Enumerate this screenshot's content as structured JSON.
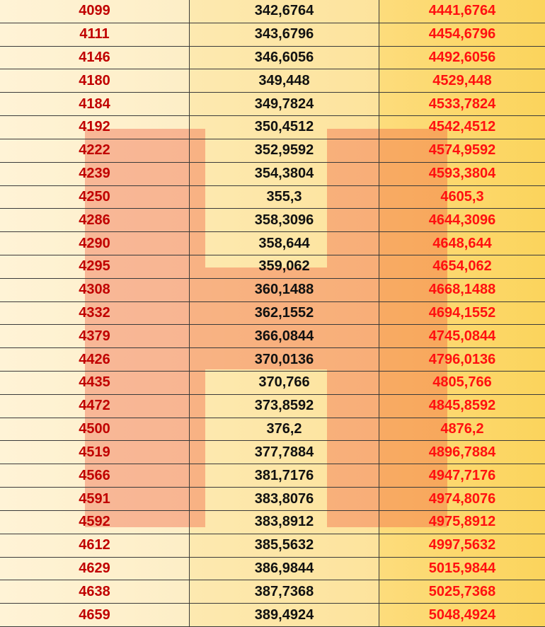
{
  "table": {
    "rows": [
      [
        "4099",
        "342,6764",
        "4441,6764"
      ],
      [
        "4111",
        "343,6796",
        "4454,6796"
      ],
      [
        "4146",
        "346,6056",
        "4492,6056"
      ],
      [
        "4180",
        "349,448",
        "4529,448"
      ],
      [
        "4184",
        "349,7824",
        "4533,7824"
      ],
      [
        "4192",
        "350,4512",
        "4542,4512"
      ],
      [
        "4222",
        "352,9592",
        "4574,9592"
      ],
      [
        "4239",
        "354,3804",
        "4593,3804"
      ],
      [
        "4250",
        "355,3",
        "4605,3"
      ],
      [
        "4286",
        "358,3096",
        "4644,3096"
      ],
      [
        "4290",
        "358,644",
        "4648,644"
      ],
      [
        "4295",
        "359,062",
        "4654,062"
      ],
      [
        "4308",
        "360,1488",
        "4668,1488"
      ],
      [
        "4332",
        "362,1552",
        "4694,1552"
      ],
      [
        "4379",
        "366,0844",
        "4745,0844"
      ],
      [
        "4426",
        "370,0136",
        "4796,0136"
      ],
      [
        "4435",
        "370,766",
        "4805,766"
      ],
      [
        "4472",
        "373,8592",
        "4845,8592"
      ],
      [
        "4500",
        "376,2",
        "4876,2"
      ],
      [
        "4519",
        "377,7884",
        "4896,7884"
      ],
      [
        "4566",
        "381,7176",
        "4947,7176"
      ],
      [
        "4591",
        "383,8076",
        "4974,8076"
      ],
      [
        "4592",
        "383,8912",
        "4975,8912"
      ],
      [
        "4612",
        "385,5632",
        "4997,5632"
      ],
      [
        "4629",
        "386,9844",
        "5015,9844"
      ],
      [
        "4638",
        "387,7368",
        "5025,7368"
      ],
      [
        "4659",
        "389,4924",
        "5048,4924"
      ]
    ]
  }
}
